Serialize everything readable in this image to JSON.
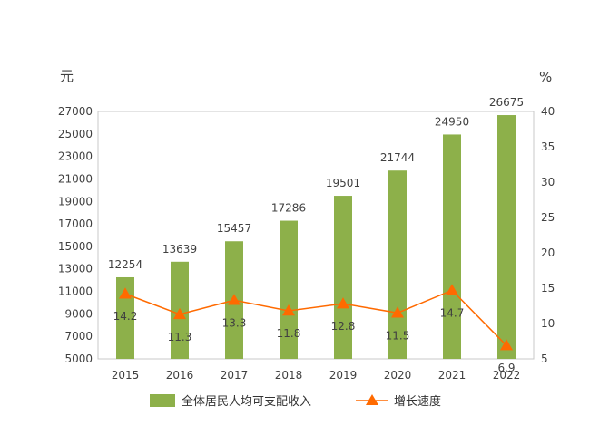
{
  "chart_data": {
    "type": "bar+line",
    "categories": [
      "2015",
      "2016",
      "2017",
      "2018",
      "2019",
      "2020",
      "2021",
      "2022"
    ],
    "series": [
      {
        "name": "全体居民人均可支配收入",
        "kind": "bar",
        "axis": "left",
        "color": "#8db04a",
        "values": [
          12254,
          13639,
          15457,
          17286,
          19501,
          21744,
          24950,
          26675
        ]
      },
      {
        "name": "增长速度",
        "kind": "line",
        "axis": "right",
        "color": "#ff6a00",
        "marker": "triangle",
        "values": [
          14.2,
          11.3,
          13.3,
          11.8,
          12.8,
          11.5,
          14.7,
          6.9
        ]
      }
    ],
    "ylabel_left": "元",
    "ylabel_right": "%",
    "ylim_left": [
      5000,
      27000
    ],
    "yticks_left": [
      5000,
      7000,
      9000,
      11000,
      13000,
      15000,
      17000,
      19000,
      21000,
      23000,
      25000,
      27000
    ],
    "ylim_right": [
      5,
      40
    ],
    "yticks_right": [
      5,
      10,
      15,
      20,
      25,
      30,
      35,
      40
    ],
    "grid": false,
    "legend_position": "bottom"
  }
}
